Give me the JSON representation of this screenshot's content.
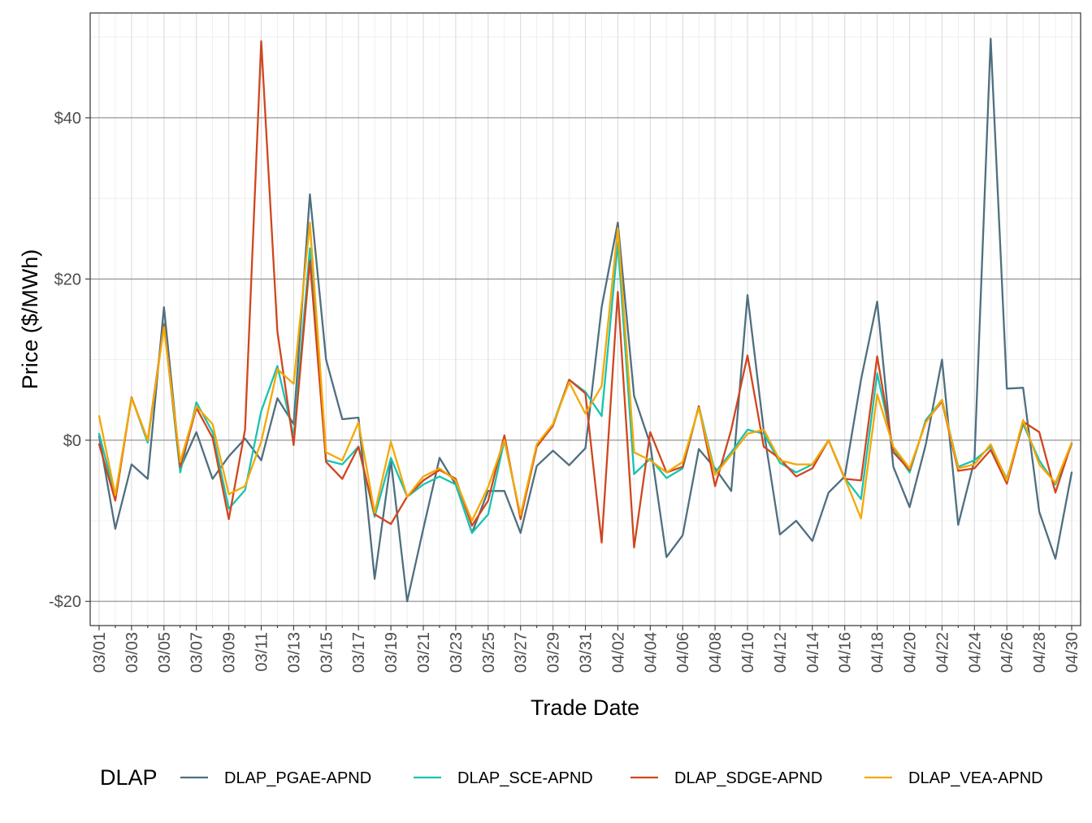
{
  "chart_data": {
    "type": "line",
    "title": "",
    "xlabel": "Trade Date",
    "ylabel": "Price ($/MWh)",
    "ylim": [
      -23,
      53
    ],
    "y_ticks": [
      -20,
      0,
      20,
      40
    ],
    "y_tick_labels": [
      "-$20",
      "$0",
      "$20",
      "$40"
    ],
    "grid": true,
    "legend_title": "DLAP",
    "legend_position": "bottom",
    "x_tick_labels": [
      "03/01",
      "03/03",
      "03/05",
      "03/07",
      "03/09",
      "03/11",
      "03/13",
      "03/15",
      "03/17",
      "03/19",
      "03/21",
      "03/23",
      "03/25",
      "03/27",
      "03/29",
      "03/31",
      "04/02",
      "04/04",
      "04/06",
      "04/08",
      "04/10",
      "04/12",
      "04/14",
      "04/16",
      "04/18",
      "04/20",
      "04/22",
      "04/24",
      "04/26",
      "04/28",
      "04/30"
    ],
    "x": [
      "03/01",
      "03/02",
      "03/03",
      "03/04",
      "03/05",
      "03/06",
      "03/07",
      "03/08",
      "03/09",
      "03/10",
      "03/11",
      "03/12",
      "03/13",
      "03/14",
      "03/15",
      "03/16",
      "03/17",
      "03/18",
      "03/19",
      "03/20",
      "03/21",
      "03/22",
      "03/23",
      "03/24",
      "03/25",
      "03/26",
      "03/27",
      "03/28",
      "03/29",
      "03/30",
      "03/31",
      "04/01",
      "04/02",
      "04/03",
      "04/04",
      "04/05",
      "04/06",
      "04/07",
      "04/08",
      "04/09",
      "04/10",
      "04/11",
      "04/12",
      "04/13",
      "04/14",
      "04/15",
      "04/16",
      "04/17",
      "04/18",
      "04/19",
      "04/20",
      "04/21",
      "04/22",
      "04/23",
      "04/24",
      "04/25",
      "04/26",
      "04/27",
      "04/28",
      "04/29",
      "04/30"
    ],
    "series": [
      {
        "name": "DLAP_PGAE-APND",
        "color": "#4f6f80",
        "values": [
          0.5,
          -11,
          -3,
          -4.8,
          16.5,
          -3.5,
          1,
          -4.8,
          -2,
          0.2,
          -2.5,
          5.2,
          2,
          30.5,
          10,
          2.6,
          2.8,
          -17.2,
          -2.5,
          -20,
          -11,
          -2.2,
          -5.5,
          -11.5,
          -6.3,
          -6.3,
          -11.5,
          -3.2,
          -1.3,
          -3.1,
          -1,
          16.5,
          27,
          5.5,
          -0.5,
          -14.5,
          -11.8,
          -1.1,
          -3.5,
          -6.3,
          18,
          1.2,
          -11.7,
          -10,
          -12.5,
          -6.5,
          -4.5,
          7.5,
          17.2,
          -3.3,
          -8.3,
          -0.5,
          10,
          -10.5,
          -2.5,
          49.8,
          6.4,
          6.5,
          -8.9,
          -14.7,
          -4
        ]
      },
      {
        "name": "DLAP_SCE-APND",
        "color": "#17c3b2",
        "values": [
          0.8,
          -7,
          5.3,
          -0.3,
          14.5,
          -4,
          4.7,
          1,
          -8.5,
          -6.2,
          3.6,
          9.2,
          0.5,
          23.8,
          -2.5,
          -3,
          -0.8,
          -9.5,
          -2.2,
          -7,
          -5.5,
          -4.5,
          -5.5,
          -11.5,
          -9.2,
          0,
          -9.5,
          -0.8,
          2,
          7.5,
          6,
          3,
          24.5,
          -4.2,
          -2.3,
          -4.7,
          -3.5,
          4.2,
          -4,
          -1.5,
          1.3,
          0.8,
          -2.8,
          -4,
          -3,
          0,
          -4.7,
          -7.3,
          8.3,
          -1,
          -4,
          2.5,
          5,
          -3.3,
          -2.5,
          -0.8,
          -4.8,
          2,
          -2.5,
          -5.5,
          -0.5
        ]
      },
      {
        "name": "DLAP_SDGE-APND",
        "color": "#d0461e",
        "values": [
          -0.5,
          -7.5,
          5.3,
          0,
          14.3,
          -3.3,
          4,
          0.3,
          -9.8,
          1.3,
          49.5,
          13.5,
          -0.6,
          22.3,
          -2.7,
          -4.8,
          -0.8,
          -9.2,
          -10.4,
          -7,
          -5,
          -3.7,
          -4.8,
          -10.6,
          -7.5,
          0.6,
          -9.8,
          -0.8,
          1.8,
          7.5,
          5.8,
          -12.7,
          18.4,
          -13.3,
          1,
          -4,
          -3.3,
          4.2,
          -5.7,
          1.3,
          10.5,
          -0.8,
          -2.3,
          -4.5,
          -3.5,
          0,
          -4.8,
          -5,
          10.4,
          -1.5,
          -3.7,
          2.3,
          4.8,
          -3.8,
          -3.5,
          -1.2,
          -5.4,
          2.3,
          1,
          -6.5,
          -0.3
        ]
      },
      {
        "name": "DLAP_VEA-APND",
        "color": "#f5a800",
        "values": [
          3,
          -6.8,
          5.2,
          0,
          14,
          -2.7,
          4.2,
          2,
          -6.7,
          -5.7,
          -0.2,
          8.8,
          7,
          27,
          -1.5,
          -2.5,
          2.2,
          -9,
          -0.2,
          -7,
          -4.5,
          -3.5,
          -5,
          -10,
          -5.8,
          0,
          -9.3,
          -0.5,
          2,
          7.2,
          3.3,
          6.7,
          26.3,
          -1.5,
          -2.5,
          -4,
          -2.7,
          4,
          -4.3,
          -1.8,
          0.8,
          1.3,
          -2.5,
          -3,
          -3,
          0,
          -4.7,
          -9.7,
          5.7,
          -0.8,
          -3.5,
          2.2,
          5,
          -3.5,
          -3,
          -0.5,
          -5,
          2.5,
          -3,
          -5.3,
          -0.3
        ]
      }
    ]
  }
}
